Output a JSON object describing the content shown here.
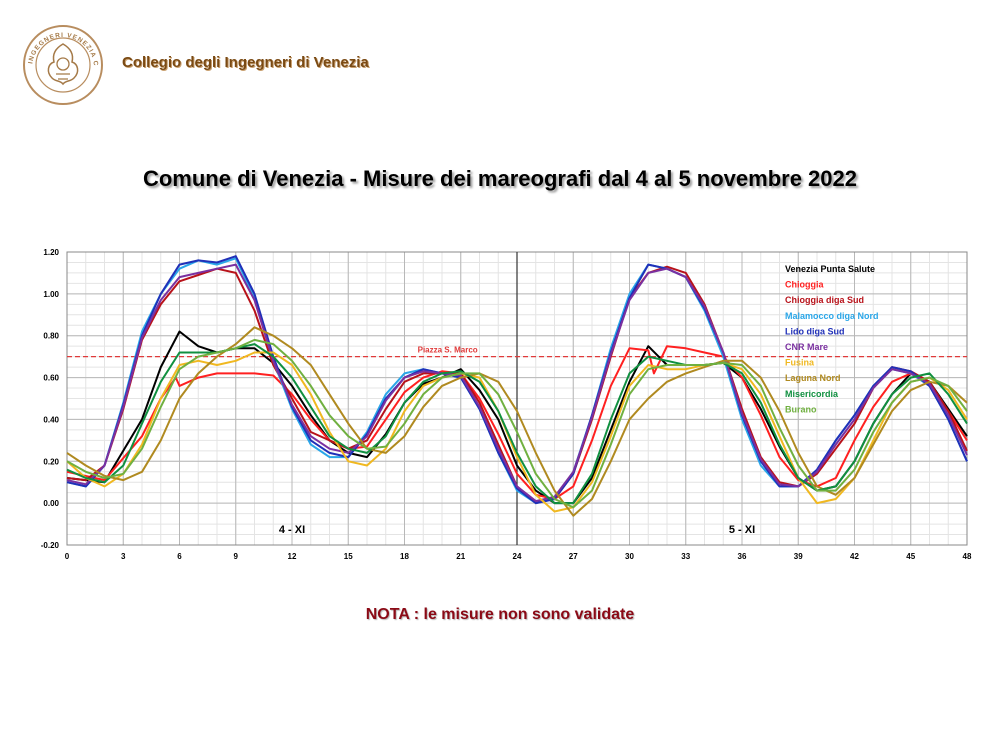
{
  "header": {
    "org_name": "Collegio degli Ingegneri di Venezia",
    "logo_text": "INGEGNERI VENEZIA COLLEGIO"
  },
  "title": "Comune di Venezia  -  Misure dei mareografi dal 4 al 5 novembre 2022",
  "note": "NOTA :  le misure non sono validate",
  "chart_data": {
    "type": "line",
    "xlim": [
      0,
      48
    ],
    "ylim": [
      -0.2,
      1.2
    ],
    "x_ticks": [
      0,
      3,
      6,
      9,
      12,
      15,
      18,
      21,
      24,
      27,
      30,
      33,
      36,
      39,
      42,
      45,
      48
    ],
    "y_ticks": [
      "-0.20",
      "0.00",
      "0.20",
      "0.40",
      "0.60",
      "0.80",
      "1.00",
      "1.20"
    ],
    "grid": true,
    "legend_position": "top-right",
    "annotations": [
      {
        "text": "Piazza S. Marco",
        "y": 0.7,
        "color": "#e03a3a"
      },
      {
        "text": "4 - XI",
        "x": 12
      },
      {
        "text": "5 - XI",
        "x": 36
      }
    ],
    "vertical_line_x": 24,
    "series": [
      {
        "name": "Venezia Punta Salute",
        "color": "#000000",
        "x": [
          0,
          2,
          4,
          5,
          6,
          7,
          8,
          9,
          10,
          11,
          12,
          13,
          14,
          15,
          16,
          17,
          18,
          19,
          20,
          21,
          22,
          23,
          24,
          25,
          26,
          27,
          28,
          29,
          30,
          31,
          32,
          33,
          34,
          35,
          36,
          37,
          38,
          39,
          40,
          41,
          42,
          43,
          44,
          45,
          46,
          47,
          48
        ],
        "y": [
          0.12,
          0.1,
          0.4,
          0.65,
          0.82,
          0.75,
          0.72,
          0.74,
          0.74,
          0.67,
          0.56,
          0.42,
          0.3,
          0.24,
          0.22,
          0.33,
          0.48,
          0.57,
          0.6,
          0.64,
          0.54,
          0.4,
          0.18,
          0.06,
          0.0,
          0.0,
          0.12,
          0.35,
          0.58,
          0.75,
          0.66,
          0.66,
          0.66,
          0.67,
          0.6,
          0.45,
          0.27,
          0.12,
          0.06,
          0.08,
          0.2,
          0.38,
          0.52,
          0.62,
          0.58,
          0.45,
          0.32
        ]
      },
      {
        "name": "Chioggia",
        "color": "#ff2020",
        "x": [
          0,
          2,
          4,
          5,
          5.8,
          6,
          7,
          8,
          9,
          10,
          11,
          12,
          13,
          14,
          15,
          16,
          17,
          18,
          19,
          20,
          21,
          22,
          23,
          24,
          25,
          26,
          27,
          28,
          29,
          30,
          31,
          31.3,
          32,
          33,
          34,
          35,
          36,
          37,
          38,
          39,
          40,
          41,
          42,
          43,
          44,
          45,
          46,
          47,
          48
        ],
        "y": [
          0.15,
          0.11,
          0.32,
          0.5,
          0.6,
          0.56,
          0.6,
          0.62,
          0.62,
          0.62,
          0.61,
          0.52,
          0.4,
          0.3,
          0.26,
          0.27,
          0.4,
          0.53,
          0.6,
          0.63,
          0.62,
          0.5,
          0.33,
          0.14,
          0.04,
          0.02,
          0.08,
          0.3,
          0.56,
          0.74,
          0.73,
          0.62,
          0.75,
          0.74,
          0.72,
          0.7,
          0.6,
          0.42,
          0.22,
          0.11,
          0.08,
          0.12,
          0.3,
          0.46,
          0.58,
          0.62,
          0.56,
          0.44,
          0.3
        ]
      },
      {
        "name": "Chioggia diga Sud",
        "color": "#b8121a",
        "x": [
          0,
          1,
          2,
          3,
          4,
          5,
          6,
          7,
          8,
          9,
          10,
          11,
          12,
          13,
          14,
          15,
          16,
          17,
          18,
          19,
          20,
          21,
          22,
          23,
          24,
          25,
          26,
          27,
          28,
          29,
          30,
          31,
          32,
          33,
          34,
          35,
          36,
          37,
          38,
          39,
          40,
          41,
          42,
          43,
          44,
          45,
          46,
          47,
          48
        ],
        "y": [
          0.12,
          0.11,
          0.18,
          0.45,
          0.78,
          0.95,
          1.06,
          1.09,
          1.12,
          1.1,
          0.92,
          0.66,
          0.5,
          0.34,
          0.3,
          0.26,
          0.3,
          0.45,
          0.58,
          0.62,
          0.62,
          0.62,
          0.48,
          0.28,
          0.08,
          0.0,
          0.02,
          0.14,
          0.4,
          0.7,
          0.98,
          1.1,
          1.13,
          1.1,
          0.95,
          0.72,
          0.45,
          0.22,
          0.1,
          0.08,
          0.14,
          0.26,
          0.38,
          0.55,
          0.65,
          0.63,
          0.58,
          0.44,
          0.25
        ]
      },
      {
        "name": "Malamocco diga Nord",
        "color": "#2aa6e8",
        "x": [
          0,
          1,
          2,
          3,
          4,
          5,
          6,
          7,
          8,
          9,
          10,
          11,
          12,
          13,
          14,
          15,
          16,
          17,
          18,
          19,
          20,
          21,
          22,
          23,
          24,
          25,
          26,
          27,
          28,
          29,
          30,
          31,
          32,
          33,
          34,
          35,
          36,
          37,
          38,
          39,
          40,
          41,
          42,
          43,
          44,
          45,
          46,
          47,
          48
        ],
        "y": [
          0.1,
          0.08,
          0.18,
          0.48,
          0.82,
          1.0,
          1.12,
          1.16,
          1.14,
          1.17,
          0.98,
          0.68,
          0.45,
          0.28,
          0.22,
          0.22,
          0.34,
          0.52,
          0.62,
          0.64,
          0.62,
          0.6,
          0.45,
          0.24,
          0.06,
          0.0,
          0.02,
          0.15,
          0.42,
          0.74,
          1.0,
          1.14,
          1.12,
          1.08,
          0.92,
          0.7,
          0.4,
          0.18,
          0.08,
          0.08,
          0.16,
          0.3,
          0.42,
          0.56,
          0.64,
          0.62,
          0.56,
          0.4,
          0.2
        ]
      },
      {
        "name": "Lido diga Sud",
        "color": "#2030b8",
        "x": [
          0,
          1,
          2,
          3,
          4,
          5,
          6,
          7,
          8,
          9,
          10,
          11,
          12,
          13,
          14,
          15,
          16,
          17,
          18,
          19,
          20,
          21,
          22,
          23,
          24,
          25,
          26,
          27,
          28,
          29,
          30,
          31,
          32,
          33,
          34,
          35,
          36,
          37,
          38,
          39,
          40,
          41,
          42,
          43,
          44,
          45,
          46,
          47,
          48
        ],
        "y": [
          0.1,
          0.08,
          0.18,
          0.47,
          0.8,
          1.0,
          1.14,
          1.16,
          1.15,
          1.18,
          1.0,
          0.7,
          0.46,
          0.3,
          0.24,
          0.22,
          0.33,
          0.5,
          0.6,
          0.64,
          0.62,
          0.6,
          0.45,
          0.24,
          0.07,
          0.0,
          0.02,
          0.14,
          0.42,
          0.72,
          0.98,
          1.14,
          1.12,
          1.08,
          0.93,
          0.72,
          0.42,
          0.2,
          0.08,
          0.08,
          0.16,
          0.3,
          0.42,
          0.56,
          0.65,
          0.63,
          0.56,
          0.4,
          0.2
        ]
      },
      {
        "name": "CNR Mare",
        "color": "#7a30a0",
        "x": [
          0,
          1,
          2,
          3,
          4,
          5,
          6,
          7,
          8,
          9,
          10,
          11,
          12,
          13,
          14,
          15,
          16,
          17,
          18,
          19,
          20,
          21,
          22,
          23,
          24,
          25,
          26,
          27,
          28,
          29,
          30,
          31,
          32,
          33,
          34,
          35,
          36,
          37,
          38,
          39,
          40,
          41,
          42,
          43,
          44,
          45,
          46,
          47,
          48
        ],
        "y": [
          0.11,
          0.09,
          0.18,
          0.46,
          0.79,
          0.97,
          1.08,
          1.1,
          1.12,
          1.14,
          0.97,
          0.68,
          0.47,
          0.32,
          0.26,
          0.24,
          0.32,
          0.49,
          0.6,
          0.63,
          0.62,
          0.61,
          0.46,
          0.26,
          0.08,
          0.01,
          0.03,
          0.15,
          0.41,
          0.71,
          0.97,
          1.1,
          1.12,
          1.08,
          0.94,
          0.72,
          0.43,
          0.21,
          0.09,
          0.08,
          0.15,
          0.28,
          0.4,
          0.55,
          0.64,
          0.62,
          0.57,
          0.42,
          0.23
        ]
      },
      {
        "name": "Fusina",
        "color": "#f0b820",
        "x": [
          0,
          1,
          2,
          3,
          4,
          5,
          6,
          7,
          8,
          9,
          10,
          11,
          12,
          13,
          14,
          15,
          16,
          17,
          18,
          19,
          20,
          21,
          22,
          23,
          24,
          25,
          26,
          27,
          28,
          29,
          30,
          31,
          32,
          33,
          34,
          35,
          36,
          37,
          38,
          39,
          40,
          41,
          42,
          43,
          44,
          45,
          46,
          47,
          48
        ],
        "y": [
          0.2,
          0.12,
          0.08,
          0.14,
          0.28,
          0.5,
          0.66,
          0.68,
          0.66,
          0.68,
          0.72,
          0.72,
          0.66,
          0.52,
          0.34,
          0.2,
          0.18,
          0.26,
          0.44,
          0.56,
          0.6,
          0.62,
          0.6,
          0.44,
          0.22,
          0.04,
          -0.04,
          -0.02,
          0.1,
          0.32,
          0.56,
          0.66,
          0.64,
          0.64,
          0.66,
          0.67,
          0.64,
          0.52,
          0.32,
          0.12,
          0.0,
          0.02,
          0.12,
          0.3,
          0.48,
          0.58,
          0.6,
          0.54,
          0.4
        ]
      },
      {
        "name": "Laguna Nord",
        "color": "#b08a20",
        "x": [
          0,
          1,
          2,
          3,
          4,
          5,
          6,
          7,
          8,
          9,
          10,
          11,
          12,
          13,
          14,
          15,
          16,
          17,
          18,
          19,
          20,
          21,
          22,
          23,
          24,
          25,
          26,
          27,
          28,
          29,
          30,
          31,
          32,
          33,
          34,
          35,
          36,
          37,
          38,
          39,
          40,
          41,
          42,
          43,
          44,
          45,
          46,
          47,
          48
        ],
        "y": [
          0.24,
          0.18,
          0.13,
          0.11,
          0.15,
          0.3,
          0.5,
          0.62,
          0.7,
          0.76,
          0.84,
          0.8,
          0.74,
          0.66,
          0.52,
          0.38,
          0.26,
          0.24,
          0.32,
          0.46,
          0.56,
          0.6,
          0.62,
          0.58,
          0.44,
          0.24,
          0.06,
          -0.06,
          0.02,
          0.2,
          0.4,
          0.5,
          0.58,
          0.62,
          0.65,
          0.68,
          0.68,
          0.6,
          0.44,
          0.24,
          0.08,
          0.04,
          0.12,
          0.28,
          0.44,
          0.54,
          0.58,
          0.56,
          0.48
        ]
      },
      {
        "name": "Misericordia",
        "color": "#109040",
        "x": [
          0,
          1,
          2,
          3,
          4,
          5,
          6,
          7,
          8,
          9,
          10,
          11,
          12,
          13,
          14,
          15,
          16,
          17,
          18,
          19,
          20,
          21,
          22,
          23,
          24,
          25,
          26,
          27,
          28,
          29,
          30,
          31,
          32,
          33,
          34,
          35,
          36,
          37,
          38,
          39,
          40,
          41,
          42,
          43,
          44,
          45,
          46,
          47,
          48
        ],
        "y": [
          0.16,
          0.12,
          0.1,
          0.18,
          0.38,
          0.58,
          0.72,
          0.72,
          0.72,
          0.74,
          0.76,
          0.7,
          0.6,
          0.46,
          0.32,
          0.26,
          0.24,
          0.32,
          0.48,
          0.58,
          0.62,
          0.63,
          0.58,
          0.44,
          0.24,
          0.08,
          0.0,
          0.0,
          0.14,
          0.4,
          0.62,
          0.7,
          0.68,
          0.66,
          0.66,
          0.67,
          0.62,
          0.48,
          0.28,
          0.12,
          0.06,
          0.08,
          0.2,
          0.38,
          0.52,
          0.6,
          0.62,
          0.52,
          0.38
        ]
      },
      {
        "name": "Burano",
        "color": "#70b040",
        "x": [
          0,
          1,
          2,
          3,
          4,
          5,
          6,
          7,
          8,
          9,
          10,
          11,
          12,
          13,
          14,
          15,
          16,
          17,
          18,
          19,
          20,
          21,
          22,
          23,
          24,
          25,
          26,
          27,
          28,
          29,
          30,
          31,
          32,
          33,
          34,
          35,
          36,
          37,
          38,
          39,
          40,
          41,
          42,
          43,
          44,
          45,
          46,
          47,
          48
        ],
        "y": [
          0.2,
          0.15,
          0.12,
          0.14,
          0.26,
          0.46,
          0.64,
          0.7,
          0.72,
          0.74,
          0.78,
          0.76,
          0.68,
          0.56,
          0.42,
          0.32,
          0.26,
          0.27,
          0.38,
          0.52,
          0.6,
          0.62,
          0.62,
          0.52,
          0.34,
          0.14,
          0.02,
          -0.02,
          0.06,
          0.28,
          0.52,
          0.64,
          0.66,
          0.66,
          0.66,
          0.67,
          0.66,
          0.56,
          0.36,
          0.18,
          0.06,
          0.06,
          0.16,
          0.34,
          0.48,
          0.58,
          0.6,
          0.56,
          0.44
        ]
      }
    ]
  }
}
